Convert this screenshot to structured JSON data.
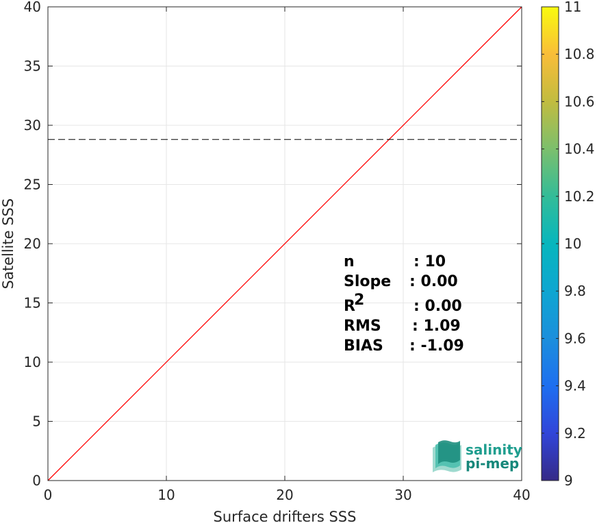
{
  "chart_data": {
    "type": "scatter",
    "xlabel": "Surface drifters SSS",
    "ylabel": "Satellite SSS",
    "xlim": [
      0,
      40
    ],
    "ylim": [
      0,
      40
    ],
    "xticks": [
      "0",
      "10",
      "20",
      "30",
      "40"
    ],
    "yticks": [
      "0",
      "5",
      "10",
      "15",
      "20",
      "25",
      "30",
      "35",
      "40"
    ],
    "grid": true,
    "reference_line": {
      "x": [
        0,
        40
      ],
      "y": [
        0,
        40
      ],
      "color": "#ff0000"
    },
    "fit_line": {
      "x": [
        0,
        40
      ],
      "y": [
        28.8,
        28.8
      ],
      "color": "#000000",
      "style": "dashed"
    },
    "colorbar": {
      "range": [
        9,
        11
      ],
      "ticks": [
        "9",
        "9.2",
        "9.4",
        "9.6",
        "9.8",
        "10",
        "10.2",
        "10.4",
        "10.6",
        "10.8",
        "11"
      ],
      "colormap": "parula"
    },
    "stats": [
      {
        "label": "n",
        "value": ": 10"
      },
      {
        "label": "Slope",
        "value": ": 0.00"
      },
      {
        "label": "R",
        "sup": "2",
        "value": ": 0.00"
      },
      {
        "label": "RMS",
        "value": ": 1.09"
      },
      {
        "label": "BIAS",
        "value": ": -1.09"
      }
    ]
  },
  "logo": {
    "line1": "salinity",
    "line2": "pi-mep"
  }
}
